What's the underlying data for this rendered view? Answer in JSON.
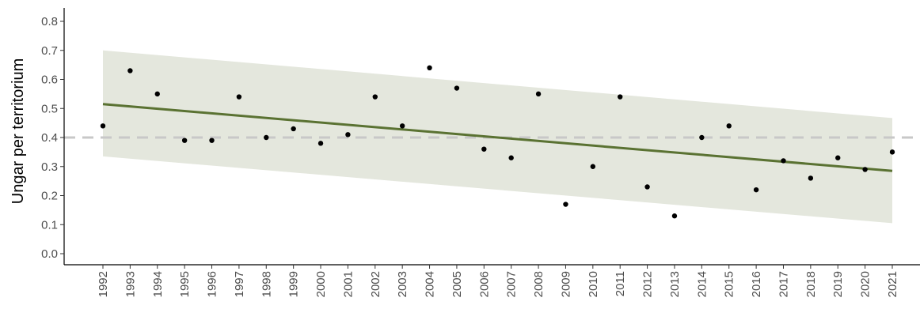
{
  "chart_data": {
    "type": "scatter",
    "title": "",
    "xlabel": "",
    "ylabel": "Ungar per territorium",
    "x": [
      1992,
      1993,
      1994,
      1995,
      1996,
      1997,
      1998,
      1999,
      2000,
      2001,
      2002,
      2003,
      2004,
      2005,
      2006,
      2007,
      2008,
      2009,
      2010,
      2011,
      2012,
      2013,
      2014,
      2015,
      2016,
      2017,
      2018,
      2019,
      2020,
      2021
    ],
    "values": [
      0.44,
      0.63,
      0.55,
      0.39,
      0.39,
      0.54,
      0.4,
      0.43,
      0.38,
      0.41,
      0.54,
      0.44,
      0.64,
      0.57,
      0.36,
      0.33,
      0.55,
      0.17,
      0.3,
      0.54,
      0.23,
      0.13,
      0.4,
      0.44,
      0.22,
      0.32,
      0.26,
      0.33,
      0.29,
      0.35
    ],
    "xlim": [
      1992,
      2021
    ],
    "ylim": [
      0.0,
      0.8
    ],
    "y_ticks": [
      0.0,
      0.1,
      0.2,
      0.3,
      0.4,
      0.5,
      0.6,
      0.7,
      0.8
    ],
    "y_tick_labels": [
      "0.0",
      "0.1",
      "0.2",
      "0.3",
      "0.4",
      "0.5",
      "0.6",
      "0.7",
      "0.8"
    ],
    "trend": {
      "start": 0.515,
      "end": 0.285
    },
    "confidence_band": {
      "lower_start": 0.335,
      "lower_end": 0.105,
      "upper_start": 0.7,
      "upper_end": 0.467
    },
    "reference_line": 0.4,
    "grid": false,
    "colors": {
      "points": "#000000",
      "trend": "#5a7232",
      "band": "#e4e7dd",
      "reference": "#c8c8c8",
      "axis": "#000000"
    }
  }
}
